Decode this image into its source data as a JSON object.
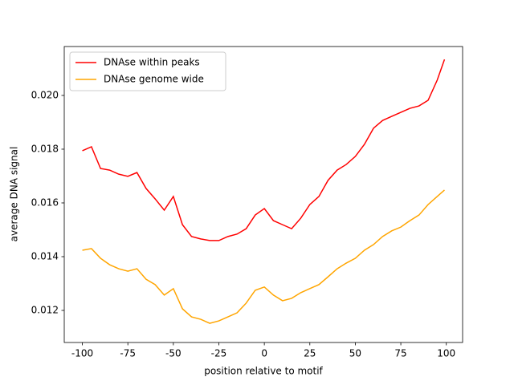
{
  "chart_data": {
    "type": "line",
    "xlabel": "position relative to motif",
    "ylabel": "average DNA signal",
    "x": [
      -100,
      -95,
      -90,
      -85,
      -80,
      -75,
      -70,
      -65,
      -60,
      -55,
      -50,
      -45,
      -40,
      -35,
      -30,
      -25,
      -20,
      -15,
      -10,
      -5,
      0,
      5,
      10,
      15,
      20,
      25,
      30,
      35,
      40,
      45,
      50,
      55,
      60,
      65,
      70,
      75,
      80,
      85,
      90,
      95,
      99
    ],
    "series": [
      {
        "name": "DNAse within peaks",
        "color": "#ff0000",
        "values": [
          0.01794,
          0.01809,
          0.01728,
          0.01722,
          0.01707,
          0.01699,
          0.01713,
          0.01654,
          0.01615,
          0.01573,
          0.01624,
          0.01519,
          0.01475,
          0.01466,
          0.0146,
          0.0146,
          0.01475,
          0.01484,
          0.01504,
          0.01555,
          0.01579,
          0.01534,
          0.01519,
          0.01504,
          0.01543,
          0.01594,
          0.01624,
          0.01684,
          0.01722,
          0.01743,
          0.01773,
          0.01818,
          0.01878,
          0.01907,
          0.01922,
          0.01937,
          0.01952,
          0.01961,
          0.01982,
          0.02057,
          0.02134
        ]
      },
      {
        "name": "DNAse genome wide",
        "color": "#ffa500",
        "values": [
          0.01424,
          0.0143,
          0.01394,
          0.0137,
          0.01355,
          0.01346,
          0.01355,
          0.01316,
          0.01296,
          0.01257,
          0.01281,
          0.01206,
          0.01176,
          0.01167,
          0.01152,
          0.01161,
          0.01176,
          0.01191,
          0.01227,
          0.01275,
          0.01287,
          0.01257,
          0.01236,
          0.01245,
          0.01266,
          0.01281,
          0.01296,
          0.01325,
          0.01355,
          0.01376,
          0.01394,
          0.01424,
          0.01445,
          0.01475,
          0.01496,
          0.0151,
          0.01534,
          0.01555,
          0.01594,
          0.01624,
          0.01648
        ]
      }
    ],
    "xlim": [
      -109.95,
      108.95
    ],
    "ylim": [
      0.010806,
      0.02182
    ],
    "xticks": [
      -100,
      -75,
      -50,
      -25,
      0,
      25,
      50,
      75,
      100
    ],
    "yticks": [
      0.012,
      0.014,
      0.016,
      0.018,
      {
        "value": 0.02,
        "label": "0.020"
      }
    ],
    "legend": "upper left"
  }
}
